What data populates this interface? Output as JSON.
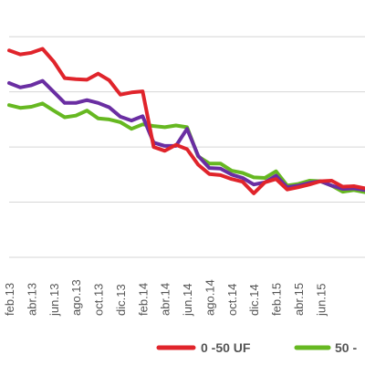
{
  "chart_data": {
    "type": "line",
    "title": "",
    "xlabel": "",
    "ylabel": "",
    "grid": true,
    "legend_position": "bottom",
    "tick_labels": [
      "feb.13",
      "abr.13",
      "jun.13",
      "ago.13",
      "oct.13",
      "dic.13",
      "feb.14",
      "abr.14",
      "jun.14",
      "ago.14",
      "oct.14",
      "dic.14",
      "feb.15",
      "abr.15",
      "jun.15"
    ],
    "series": [
      {
        "name": "0 -50 UF",
        "color": "#e0242b",
        "values": [
          5.75,
          5.68,
          5.71,
          5.78,
          5.55,
          5.25,
          5.23,
          5.22,
          5.33,
          5.21,
          4.95,
          4.99,
          5.01,
          4.0,
          3.93,
          4.04,
          3.96,
          3.68,
          3.51,
          3.49,
          3.42,
          3.37,
          3.16,
          3.36,
          3.42,
          3.23,
          3.27,
          3.32,
          3.38,
          3.39,
          3.28,
          3.29,
          3.25
        ]
      },
      {
        "name": "50 -",
        "color": "#66b821",
        "values": [
          4.76,
          4.71,
          4.73,
          4.79,
          4.66,
          4.54,
          4.57,
          4.66,
          4.52,
          4.5,
          4.45,
          4.33,
          4.41,
          4.38,
          4.36,
          4.39,
          4.36,
          3.83,
          3.7,
          3.7,
          3.57,
          3.53,
          3.45,
          3.44,
          3.56,
          3.3,
          3.33,
          3.39,
          3.38,
          3.3,
          3.19,
          3.22,
          3.18
        ]
      },
      {
        "name": "",
        "color": "#6a2ea2",
        "values": [
          5.16,
          5.08,
          5.12,
          5.2,
          5.0,
          4.8,
          4.8,
          4.85,
          4.8,
          4.72,
          4.55,
          4.48,
          4.56,
          4.08,
          4.02,
          4.02,
          4.33,
          3.84,
          3.62,
          3.61,
          3.5,
          3.44,
          3.32,
          3.36,
          3.48,
          3.27,
          3.3,
          3.35,
          3.38,
          3.3,
          3.24,
          3.25,
          3.22
        ]
      }
    ],
    "ylim": [
      2.0,
      6.5
    ]
  }
}
